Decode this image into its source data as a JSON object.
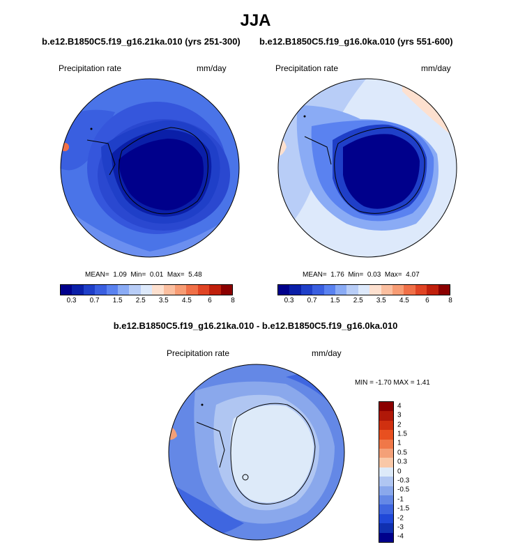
{
  "title": "JJA",
  "panel1": {
    "case": "b.e12.B1850C5.f19_g16.21ka.010 (yrs 251-300)",
    "variable": "Precipitation rate",
    "units": "mm/day",
    "stats": {
      "mean_label": "MEAN=",
      "mean": "1.09",
      "min_label": "Min=",
      "min": "0.01",
      "max_label": "Max=",
      "max": "5.48"
    }
  },
  "panel2": {
    "case": "b.e12.B1850C5.f19_g16.0ka.010 (yrs 551-600)",
    "variable": "Precipitation rate",
    "units": "mm/day",
    "stats": {
      "mean_label": "MEAN=",
      "mean": "1.76",
      "min_label": "Min=",
      "min": "0.03",
      "max_label": "Max=",
      "max": "4.07"
    }
  },
  "panel3": {
    "case": "b.e12.B1850C5.f19_g16.21ka.010 - b.e12.B1850C5.f19_g16.0ka.010",
    "variable": "Precipitation rate",
    "units": "mm/day",
    "stats": {
      "min_label": "MIN =",
      "min": "-1.70",
      "max_label": "MAX =",
      "max": "1.41"
    }
  },
  "colorbar_abs": {
    "colors": [
      "#00008b",
      "#0a1fa8",
      "#1f3fc8",
      "#3a5fe0",
      "#5a82f0",
      "#8aabf5",
      "#b8cdf7",
      "#dde9fb",
      "#fde0cf",
      "#fbbfa0",
      "#f79c74",
      "#f07048",
      "#e04424",
      "#c0200c",
      "#8b0000"
    ],
    "tick_labels": [
      "0.3",
      "0.7",
      "1.5",
      "2.5",
      "3.5",
      "4.5",
      "6",
      "8"
    ]
  },
  "colorbar_diff": {
    "colors": [
      "#8b0000",
      "#b01808",
      "#d03010",
      "#e85020",
      "#f07848",
      "#f4a078",
      "#f9c8a8",
      "#ddeaf9",
      "#b0c6f2",
      "#8aa8ec",
      "#6488e6",
      "#3f66e0",
      "#2048d8",
      "#1030b0",
      "#00008b"
    ],
    "tick_labels": [
      "4",
      "3",
      "2",
      "1.5",
      "1",
      "0.5",
      "0.3",
      "0",
      "-0.3",
      "-0.5",
      "-1",
      "-1.5",
      "-2",
      "-3",
      "-4"
    ]
  }
}
